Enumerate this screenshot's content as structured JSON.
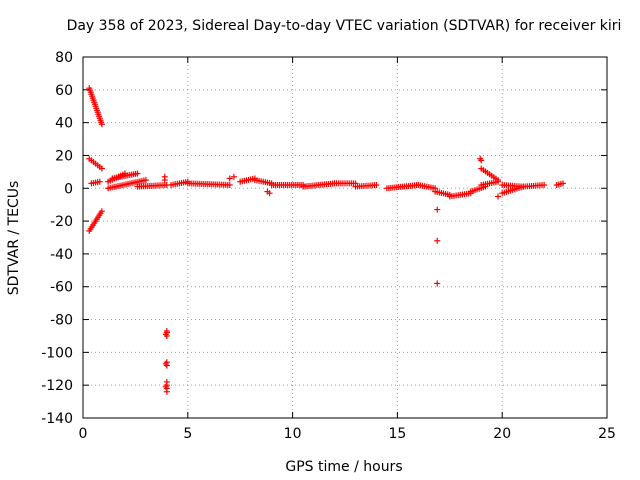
{
  "chart_data": {
    "type": "scatter",
    "title": "Day 358 of 2023, Sidereal Day-to-day VTEC variation (SDTVAR) for receiver kiri",
    "xlabel": "GPS time / hours",
    "ylabel": "SDTVAR / TECUs",
    "xlim": [
      0,
      25
    ],
    "ylim": [
      -140,
      80
    ],
    "xticks": [
      0,
      5,
      10,
      15,
      20,
      25
    ],
    "yticks": [
      -140,
      -120,
      -100,
      -80,
      -60,
      -40,
      -20,
      0,
      20,
      40,
      60,
      80
    ],
    "grid": true,
    "marker": "+",
    "color": "#ff0000",
    "segments": [
      {
        "x": [
          0.3,
          0.9
        ],
        "y": [
          61,
          39
        ]
      },
      {
        "x": [
          0.3,
          0.9
        ],
        "y": [
          18,
          12
        ]
      },
      {
        "x": [
          0.3,
          0.9
        ],
        "y": [
          -26,
          -14
        ]
      },
      {
        "x": [
          0.4,
          0.8
        ],
        "y": [
          3,
          4
        ]
      },
      {
        "x": [
          1.2,
          2.0
        ],
        "y": [
          4,
          9
        ]
      },
      {
        "x": [
          1.2,
          3.0
        ],
        "y": [
          0,
          5
        ]
      },
      {
        "x": [
          1.4,
          2.6
        ],
        "y": [
          6,
          9
        ]
      },
      {
        "x": [
          2.6,
          4.0
        ],
        "y": [
          1,
          2
        ]
      },
      {
        "x": [
          4.2,
          5.0
        ],
        "y": [
          2,
          4
        ]
      },
      {
        "x": [
          5.0,
          7.0
        ],
        "y": [
          3,
          2
        ]
      },
      {
        "x": [
          7.5,
          8.2
        ],
        "y": [
          4,
          6
        ]
      },
      {
        "x": [
          8.2,
          9.0
        ],
        "y": [
          5,
          3
        ]
      },
      {
        "x": [
          9.0,
          10.5
        ],
        "y": [
          2,
          2
        ]
      },
      {
        "x": [
          10.5,
          12.0
        ],
        "y": [
          1,
          3
        ]
      },
      {
        "x": [
          12.0,
          13.0
        ],
        "y": [
          3,
          3
        ]
      },
      {
        "x": [
          13.0,
          14.0
        ],
        "y": [
          1,
          2
        ]
      },
      {
        "x": [
          14.5,
          16.0
        ],
        "y": [
          0,
          2
        ]
      },
      {
        "x": [
          16.0,
          16.8
        ],
        "y": [
          2,
          0
        ]
      },
      {
        "x": [
          16.8,
          17.5
        ],
        "y": [
          -2,
          -4
        ]
      },
      {
        "x": [
          17.5,
          18.5
        ],
        "y": [
          -5,
          -3
        ]
      },
      {
        "x": [
          18.5,
          19.2
        ],
        "y": [
          -2,
          1
        ]
      },
      {
        "x": [
          19.0,
          19.8
        ],
        "y": [
          12,
          5
        ]
      },
      {
        "x": [
          19.0,
          19.8
        ],
        "y": [
          2,
          4
        ]
      },
      {
        "x": [
          20.0,
          21.0
        ],
        "y": [
          -3,
          1
        ]
      },
      {
        "x": [
          20.0,
          21.0
        ],
        "y": [
          2,
          1
        ]
      },
      {
        "x": [
          21.0,
          22.0
        ],
        "y": [
          1,
          2
        ]
      },
      {
        "x": [
          22.6,
          22.9
        ],
        "y": [
          2,
          3
        ]
      }
    ],
    "points": [
      [
        3.9,
        7
      ],
      [
        3.9,
        5
      ],
      [
        4.0,
        -88
      ],
      [
        4.0,
        -87
      ],
      [
        3.95,
        -89
      ],
      [
        4.0,
        -90
      ],
      [
        4.0,
        -106
      ],
      [
        3.95,
        -107
      ],
      [
        4.0,
        -108
      ],
      [
        4.0,
        -118
      ],
      [
        4.0,
        -120
      ],
      [
        3.95,
        -121
      ],
      [
        4.0,
        -122
      ],
      [
        4.0,
        -124
      ],
      [
        7.2,
        7
      ],
      [
        7.0,
        6
      ],
      [
        8.8,
        -2
      ],
      [
        8.9,
        -3
      ],
      [
        16.9,
        -13
      ],
      [
        16.9,
        -32
      ],
      [
        16.9,
        -58
      ],
      [
        19.0,
        17
      ],
      [
        18.95,
        18
      ],
      [
        19.8,
        -5
      ]
    ]
  }
}
